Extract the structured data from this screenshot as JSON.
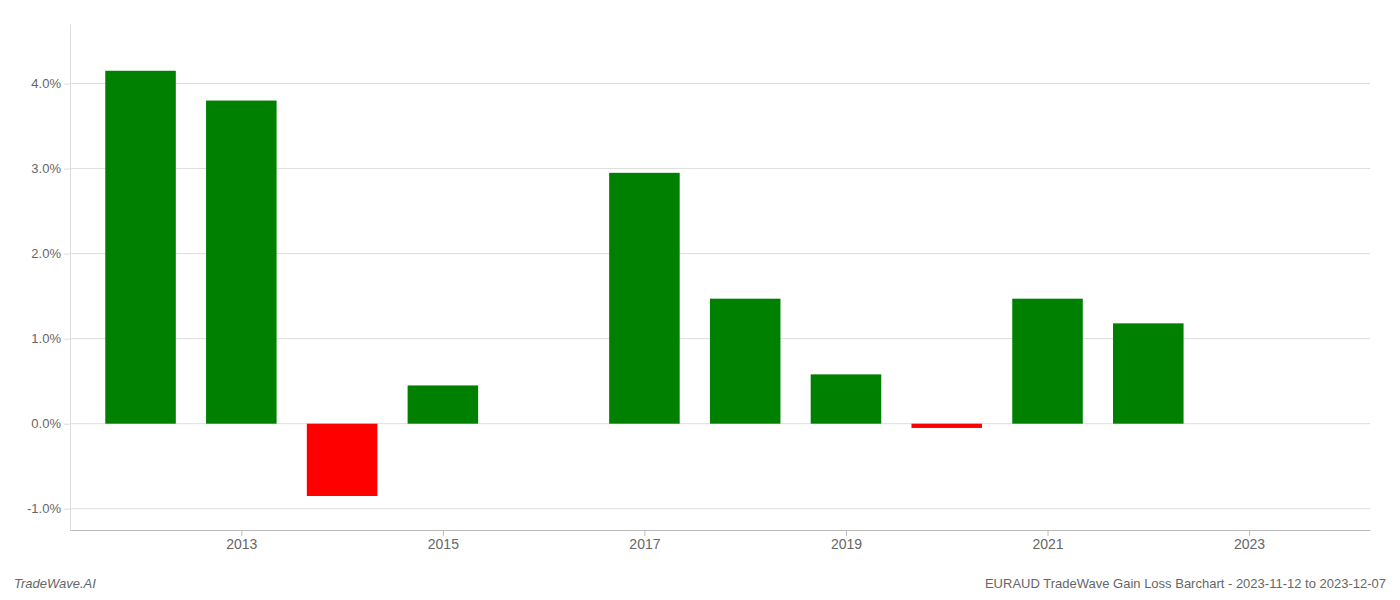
{
  "chart_data": {
    "type": "bar",
    "x": [
      2012,
      2013,
      2014,
      2015,
      2016,
      2017,
      2018,
      2019,
      2020,
      2021,
      2022
    ],
    "values": [
      4.15,
      3.8,
      -0.85,
      0.45,
      0.0,
      2.95,
      1.47,
      0.58,
      -0.05,
      1.47,
      1.18
    ],
    "colors": [
      "#008000",
      "#008000",
      "#ff0000",
      "#008000",
      null,
      "#008000",
      "#008000",
      "#008000",
      "#ff0000",
      "#008000",
      "#008000"
    ],
    "xlim": [
      2011.3,
      2024.2
    ],
    "xticks": [
      2013,
      2015,
      2017,
      2019,
      2021,
      2023
    ],
    "ylim": [
      -1.25,
      4.7
    ],
    "yticks": [
      {
        "value": -1.0,
        "label": "-1.0%"
      },
      {
        "value": 0.0,
        "label": "0.0%"
      },
      {
        "value": 1.0,
        "label": "1.0%"
      },
      {
        "value": 2.0,
        "label": "2.0%"
      },
      {
        "value": 3.0,
        "label": "3.0%"
      },
      {
        "value": 4.0,
        "label": "4.0%"
      }
    ],
    "grid": true,
    "annotations": [
      "TradeWave.AI",
      "EURAUD TradeWave Gain Loss Barchart - 2023-11-12 to 2023-12-07"
    ]
  }
}
